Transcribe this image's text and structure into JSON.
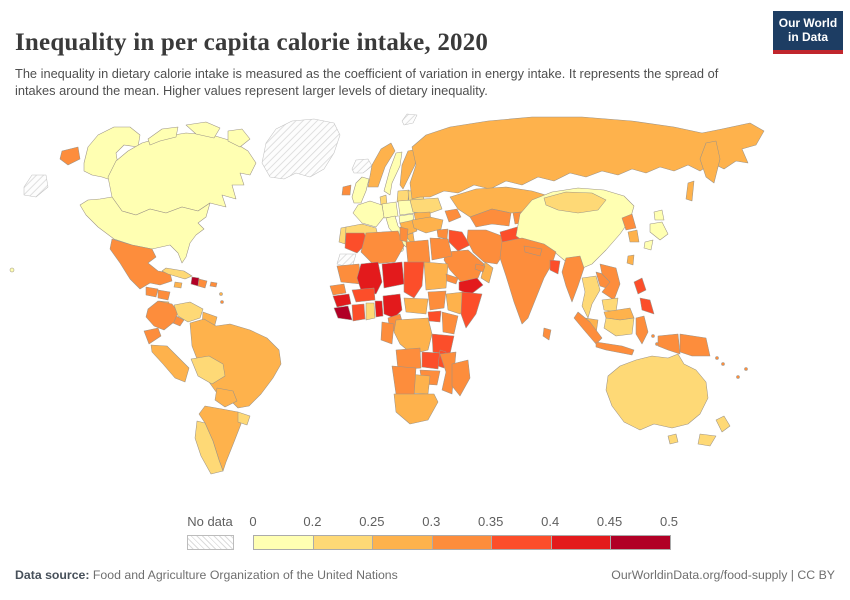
{
  "header": {
    "title": "Inequality in per capita calorie intake, 2020",
    "subtitle": "The inequality in dietary calorie intake is measured as the coefficient of variation in energy intake. It represents the spread of intakes around the mean. Higher values represent larger levels of dietary inequality."
  },
  "logo": {
    "line1": "Our World",
    "line2": "in Data",
    "bg_color": "#1d3d63",
    "stripe_color": "#c0262d"
  },
  "legend": {
    "no_data_label": "No data",
    "tick_labels": [
      "0",
      "0.2",
      "0.25",
      "0.3",
      "0.35",
      "0.4",
      "0.45",
      "0.5"
    ]
  },
  "footer": {
    "source_label": "Data source:",
    "source_value": "Food and Agriculture Organization of the United Nations",
    "credit": "OurWorldinData.org/food-supply | CC BY"
  },
  "chart_data": {
    "type": "choropleth_map",
    "title": "Inequality in per capita calorie intake, 2020",
    "metric": "Coefficient of variation in energy intake",
    "year": 2020,
    "value_range": [
      0,
      0.5
    ],
    "legend_position": "bottom",
    "no_data_style": "grey diagonal hatch",
    "border_color": "#9d9488",
    "bins": [
      {
        "range": "0-0.2",
        "color": "#FFFFB2"
      },
      {
        "range": "0.2-0.25",
        "color": "#FED976"
      },
      {
        "range": "0.25-0.3",
        "color": "#FEB24C"
      },
      {
        "range": "0.3-0.35",
        "color": "#FD8D3C"
      },
      {
        "range": "0.35-0.4",
        "color": "#FC4E2A"
      },
      {
        "range": "0.4-0.45",
        "color": "#E31A1C"
      },
      {
        "range": "0.45-0.5",
        "color": "#B10026"
      }
    ],
    "regions": {
      "alaska": 0,
      "canada": 0,
      "canada-arctic-1": 0,
      "canada-arctic-2": 0,
      "canada-arctic-3": 0,
      "usa": 0,
      "hawaii": 0,
      "greenland": "no-data",
      "iceland": "no-data",
      "svalbard": "no-data",
      "chukotka-wrap": "no-data",
      "chukotka-west": 3,
      "mexico": 3,
      "guatemala": 3,
      "honduras": 3,
      "nicaragua": 2,
      "costa-rica-panama": 3,
      "cuba": 1,
      "jamaica": 2,
      "haiti": 6,
      "dominican-republic": 3,
      "puerto-rico": 3,
      "antilles-1": 2,
      "antilles-2": 3,
      "colombia": 3,
      "venezuela": 1,
      "guyana-suriname": 2,
      "ecuador": 3,
      "peru": 2,
      "brazil": 2,
      "bolivia": 1,
      "paraguay": 2,
      "chile": 1,
      "argentina": 2,
      "uruguay": 1,
      "uk": 0,
      "ireland": 3,
      "norway": 2,
      "sweden": 0,
      "finland": 2,
      "denmark": 1,
      "baltics": 1,
      "germany": 0,
      "poland": 0,
      "belarus": 1,
      "ukraine": 1,
      "france": 0,
      "spain": 1,
      "portugal": 1,
      "italy": 0,
      "sicily": 0,
      "sardinia": 0,
      "central-europe": 0,
      "balkans": 2,
      "romania": 2,
      "greece": 2,
      "russia": 2,
      "russia-kamchatka": 2,
      "russia-sakhalin": 2,
      "turkey": 2,
      "caucasus": 3,
      "syria": 3,
      "israel-jordan": 3,
      "iraq": 4,
      "saudi-arabia": 3,
      "yemen": 5,
      "oman": 2,
      "uae": 3,
      "iran": 3,
      "afghanistan": 4,
      "pakistan": 3,
      "turkmenistan-uzbekistan": 3,
      "kyrgyzstan-tajikistan": 3,
      "kazakhstan": 2,
      "morocco": 4,
      "western-sahara": "no-data",
      "algeria": 3,
      "tunisia": 3,
      "libya": 3,
      "egypt": 3,
      "mauritania": 3,
      "mali": 5,
      "niger": 5,
      "chad": 4,
      "sudan": 2,
      "eritrea": 3,
      "senegal": 3,
      "guinea": 5,
      "sierra-leone-liberia": 6,
      "ivory-coast": 4,
      "ghana": 1,
      "togo-benin": 5,
      "burkina-faso": 4,
      "nigeria": 5,
      "cameroon": 3,
      "central-african-republic": 2,
      "south-sudan": 3,
      "ethiopia": 2,
      "somalia": 4,
      "uganda": 4,
      "kenya": 3,
      "drc": 2,
      "congo-gabon": 3,
      "tanzania": 4,
      "angola": 3,
      "zambia": 4,
      "malawi": 4,
      "mozambique": 3,
      "zimbabwe": 3,
      "botswana": 2,
      "namibia": 3,
      "south-africa": 2,
      "madagascar": 3,
      "india": 3,
      "nepal": 3,
      "bangladesh": 4,
      "sri-lanka": 3,
      "china": 0,
      "mongolia": 1,
      "north-korea": 3,
      "south-korea": 2,
      "japan": 0,
      "taiwan": 2,
      "myanmar": 3,
      "thailand": 1,
      "laos": 3,
      "vietnam": 3,
      "cambodia": 1,
      "malaysia": 2,
      "malaysia-east": 2,
      "kalimantan": 1,
      "sumatra": 3,
      "java": 3,
      "sulawesi": 3,
      "maluku-1": 3,
      "maluku-2": 3,
      "west-papua": 3,
      "papua-new-guinea": 3,
      "solomon-1": 3,
      "solomon-2": 3,
      "vanuatu": 3,
      "fiji": 3,
      "philippines-luzon": 4,
      "philippines-south": 4,
      "australia": 1,
      "tasmania": 1,
      "new-zealand": 1
    }
  }
}
